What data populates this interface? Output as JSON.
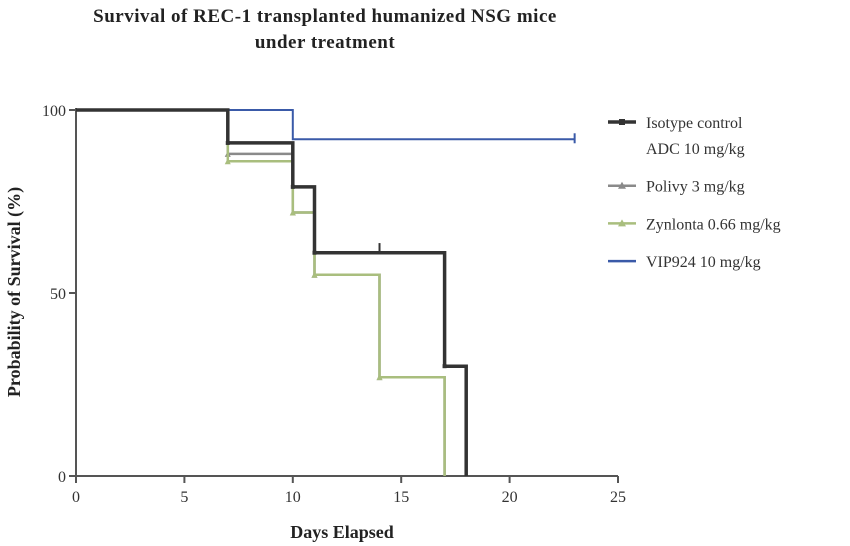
{
  "chart_data": {
    "type": "line",
    "subtype": "kaplan-meier-step",
    "title_lines": [
      "Survival of REC-1 transplanted humanized NSG mice",
      "under treatment"
    ],
    "xlabel": "Days Elapsed",
    "ylabel": "Probability of Survival (%)",
    "xlim": [
      0,
      25
    ],
    "ylim": [
      0,
      100
    ],
    "xticks": [
      "0",
      "5",
      "10",
      "15",
      "20",
      "25"
    ],
    "yticks": [
      "0",
      "50",
      "100"
    ],
    "grid": false,
    "legend_position": "right",
    "series": [
      {
        "name_lines": [
          "Isotype control",
          "ADC 10 mg/kg"
        ],
        "color": "#333333",
        "marker": "square",
        "steps": [
          [
            0,
            100
          ],
          [
            7,
            100
          ],
          [
            7,
            91
          ],
          [
            10,
            91
          ],
          [
            10,
            79
          ],
          [
            11,
            79
          ],
          [
            11,
            61
          ],
          [
            14,
            61
          ],
          [
            17,
            61
          ],
          [
            17,
            30
          ],
          [
            18,
            30
          ],
          [
            18,
            0
          ]
        ],
        "censored": [
          [
            14,
            62
          ]
        ]
      },
      {
        "name_lines": [
          "Polivy 3 mg/kg"
        ],
        "color": "#8a8a8a",
        "marker": "triangle",
        "steps": [
          [
            0,
            100
          ],
          [
            7,
            100
          ],
          [
            7,
            88
          ],
          [
            10,
            88
          ],
          [
            10,
            72
          ],
          [
            11,
            72
          ],
          [
            11,
            55
          ],
          [
            14,
            55
          ],
          [
            14,
            27
          ],
          [
            17,
            27
          ],
          [
            17,
            0
          ]
        ],
        "censored": []
      },
      {
        "name_lines": [
          "Zynlonta 0.66 mg/kg"
        ],
        "color": "#a9be7e",
        "marker": "triangle",
        "steps": [
          [
            0,
            100
          ],
          [
            7,
            100
          ],
          [
            7,
            86
          ],
          [
            10,
            86
          ],
          [
            10,
            72
          ],
          [
            11,
            72
          ],
          [
            11,
            55
          ],
          [
            14,
            55
          ],
          [
            14,
            27
          ],
          [
            17,
            27
          ],
          [
            17,
            0
          ]
        ],
        "censored": []
      },
      {
        "name_lines": [
          "VIP924 10 mg/kg"
        ],
        "color": "#3a5aa8",
        "marker": "none",
        "steps": [
          [
            0,
            100
          ],
          [
            10,
            100
          ],
          [
            10,
            92
          ],
          [
            23,
            92
          ]
        ],
        "censored": [
          [
            23,
            92
          ]
        ]
      }
    ]
  }
}
